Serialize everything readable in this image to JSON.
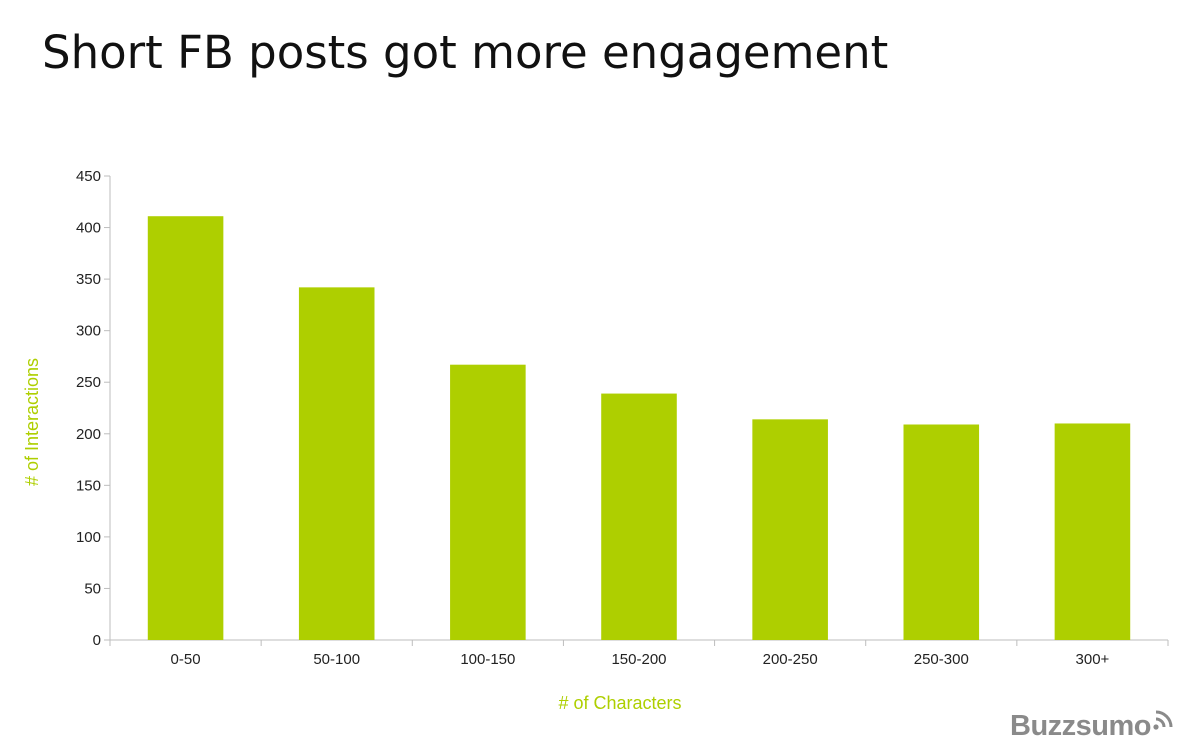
{
  "slide": {
    "title": "Short FB posts got more engagement"
  },
  "brand": {
    "name": "Buzzsumo",
    "icon": "wifi-waves-icon",
    "color": "#8a8a8a"
  },
  "chart_data": {
    "type": "bar",
    "title": "",
    "xlabel": "# of Characters",
    "ylabel": "# of Interactions",
    "categories": [
      "0-50",
      "50-100",
      "100-150",
      "150-200",
      "200-250",
      "250-300",
      "300+"
    ],
    "values": [
      411,
      342,
      267,
      239,
      214,
      209,
      210
    ],
    "ylim": [
      0,
      450
    ],
    "yticks": [
      0,
      50,
      100,
      150,
      200,
      250,
      300,
      350,
      400,
      450
    ],
    "grid": false,
    "legend": "none",
    "bar_color": "#aecf00",
    "axis_label_color": "#aecf00",
    "axis_color": "#bdbdbd"
  }
}
